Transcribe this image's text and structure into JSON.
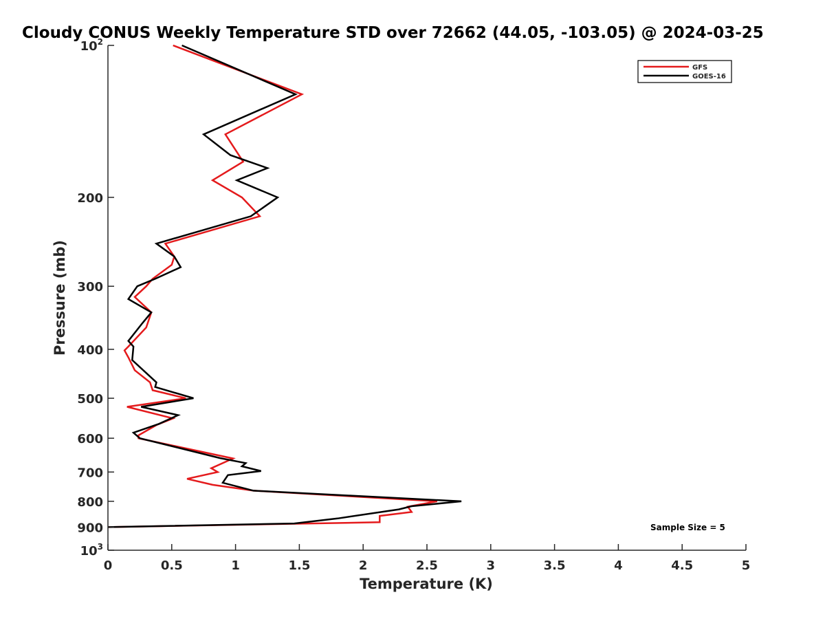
{
  "chart_data": {
    "type": "line",
    "title": "Cloudy CONUS Weekly Temperature STD over 72662 (44.05, -103.05) @ 2024-03-25",
    "xlabel": "Temperature (K)",
    "ylabel": "Pressure (mb)",
    "xlim": [
      0,
      5
    ],
    "ylim": [
      100,
      1000
    ],
    "yscale": "log",
    "y_reversed": true,
    "x_ticks": [
      0,
      0.5,
      1,
      1.5,
      2,
      2.5,
      3,
      3.5,
      4,
      4.5,
      5
    ],
    "x_tick_labels": [
      "0",
      "0.5",
      "1",
      "1.5",
      "2",
      "2.5",
      "3",
      "3.5",
      "4",
      "4.5",
      "5"
    ],
    "y_ticks": [
      {
        "value": 100,
        "base": "10",
        "exp": "2"
      },
      {
        "value": 200,
        "label": "200"
      },
      {
        "value": 300,
        "label": "300"
      },
      {
        "value": 400,
        "label": "400"
      },
      {
        "value": 500,
        "label": "500"
      },
      {
        "value": 600,
        "label": "600"
      },
      {
        "value": 700,
        "label": "700"
      },
      {
        "value": 800,
        "label": "800"
      },
      {
        "value": 900,
        "label": "900"
      },
      {
        "value": 1000,
        "base": "10",
        "exp": "3"
      }
    ],
    "grid": false,
    "legend_position": "top-right",
    "annotation": "Sample Size = 5",
    "series": [
      {
        "name": "GFS",
        "color": "#e41a1c",
        "points": [
          [
            0.51,
            100
          ],
          [
            1.52,
            125
          ],
          [
            0.92,
            150
          ],
          [
            1.06,
            170
          ],
          [
            0.82,
            185
          ],
          [
            1.05,
            200
          ],
          [
            1.19,
            218
          ],
          [
            0.45,
            247
          ],
          [
            0.52,
            262
          ],
          [
            0.5,
            272
          ],
          [
            0.35,
            290
          ],
          [
            0.3,
            300
          ],
          [
            0.21,
            315
          ],
          [
            0.34,
            338
          ],
          [
            0.3,
            362
          ],
          [
            0.16,
            395
          ],
          [
            0.13,
            402
          ],
          [
            0.16,
            415
          ],
          [
            0.21,
            440
          ],
          [
            0.33,
            465
          ],
          [
            0.35,
            482
          ],
          [
            0.61,
            500
          ],
          [
            0.15,
            520
          ],
          [
            0.51,
            548
          ],
          [
            0.38,
            565
          ],
          [
            0.24,
            592
          ],
          [
            0.24,
            600
          ],
          [
            0.98,
            658
          ],
          [
            0.81,
            688
          ],
          [
            0.86,
            700
          ],
          [
            0.62,
            722
          ],
          [
            0.82,
            742
          ],
          [
            1.14,
            762
          ],
          [
            2.58,
            800
          ],
          [
            2.35,
            820
          ],
          [
            2.38,
            840
          ],
          [
            2.13,
            855
          ],
          [
            2.13,
            880
          ],
          [
            0.0,
            900
          ]
        ]
      },
      {
        "name": "GOES-16",
        "color": "#000000",
        "points": [
          [
            0.58,
            100
          ],
          [
            1.47,
            125
          ],
          [
            0.75,
            150
          ],
          [
            0.96,
            165
          ],
          [
            1.25,
            175
          ],
          [
            1.01,
            185
          ],
          [
            1.33,
            200
          ],
          [
            1.12,
            218
          ],
          [
            0.38,
            247
          ],
          [
            0.52,
            262
          ],
          [
            0.57,
            275
          ],
          [
            0.37,
            290
          ],
          [
            0.23,
            300
          ],
          [
            0.16,
            318
          ],
          [
            0.34,
            338
          ],
          [
            0.27,
            355
          ],
          [
            0.16,
            385
          ],
          [
            0.2,
            395
          ],
          [
            0.19,
            420
          ],
          [
            0.38,
            465
          ],
          [
            0.37,
            475
          ],
          [
            0.67,
            500
          ],
          [
            0.26,
            520
          ],
          [
            0.55,
            540
          ],
          [
            0.4,
            562
          ],
          [
            0.2,
            585
          ],
          [
            0.25,
            600
          ],
          [
            0.88,
            657
          ],
          [
            1.08,
            672
          ],
          [
            1.05,
            682
          ],
          [
            1.2,
            697
          ],
          [
            0.94,
            710
          ],
          [
            0.9,
            735
          ],
          [
            1.14,
            762
          ],
          [
            2.77,
            800
          ],
          [
            2.38,
            818
          ],
          [
            2.28,
            830
          ],
          [
            1.8,
            865
          ],
          [
            1.46,
            885
          ],
          [
            0.0,
            900
          ]
        ]
      }
    ]
  }
}
